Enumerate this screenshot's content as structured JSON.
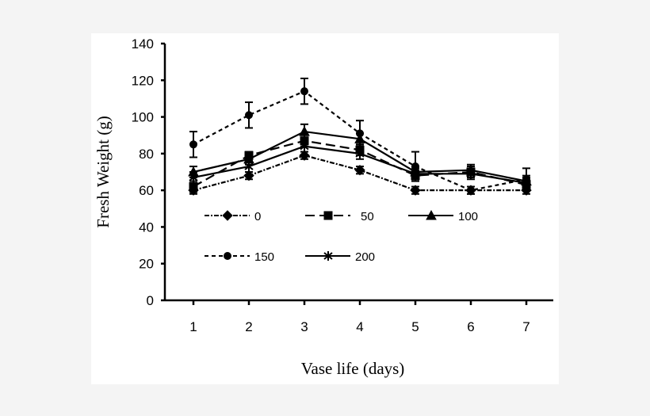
{
  "chart_data": {
    "type": "line",
    "title": "",
    "xlabel": "Vase life (days)",
    "ylabel": "Fresh Weight  (g)",
    "x": [
      1,
      2,
      3,
      4,
      5,
      6,
      7
    ],
    "xlim": [
      0.5,
      7.5
    ],
    "ylim": [
      0,
      140
    ],
    "yticks": [
      0,
      20,
      40,
      60,
      80,
      100,
      120,
      140
    ],
    "grid": false,
    "legend_placement": "inside-center",
    "series": [
      {
        "name": "0",
        "marker": "diamond",
        "line": "dash-dot",
        "values": [
          60,
          68,
          79,
          71,
          60,
          60,
          60
        ],
        "error": [
          2,
          2,
          2,
          2,
          2,
          2,
          2
        ]
      },
      {
        "name": "50",
        "marker": "square",
        "line": "long-dash",
        "values": [
          62,
          79,
          87,
          82,
          68,
          70,
          63
        ],
        "error": [
          3,
          2,
          3,
          3,
          3,
          3,
          3
        ]
      },
      {
        "name": "100",
        "marker": "triangle",
        "line": "solid",
        "values": [
          70,
          77,
          92,
          88,
          70,
          71,
          65
        ],
        "error": [
          3,
          3,
          4,
          3,
          3,
          3,
          3
        ]
      },
      {
        "name": "150",
        "marker": "circle",
        "line": "short-dash",
        "values": [
          85,
          101,
          114,
          91,
          73,
          60,
          66
        ],
        "error": [
          7,
          7,
          7,
          7,
          8,
          2,
          6
        ]
      },
      {
        "name": "200",
        "marker": "star",
        "line": "solid",
        "values": [
          67,
          73,
          84,
          80,
          69,
          69,
          64
        ],
        "error": [
          3,
          3,
          3,
          3,
          3,
          3,
          3
        ]
      }
    ]
  }
}
